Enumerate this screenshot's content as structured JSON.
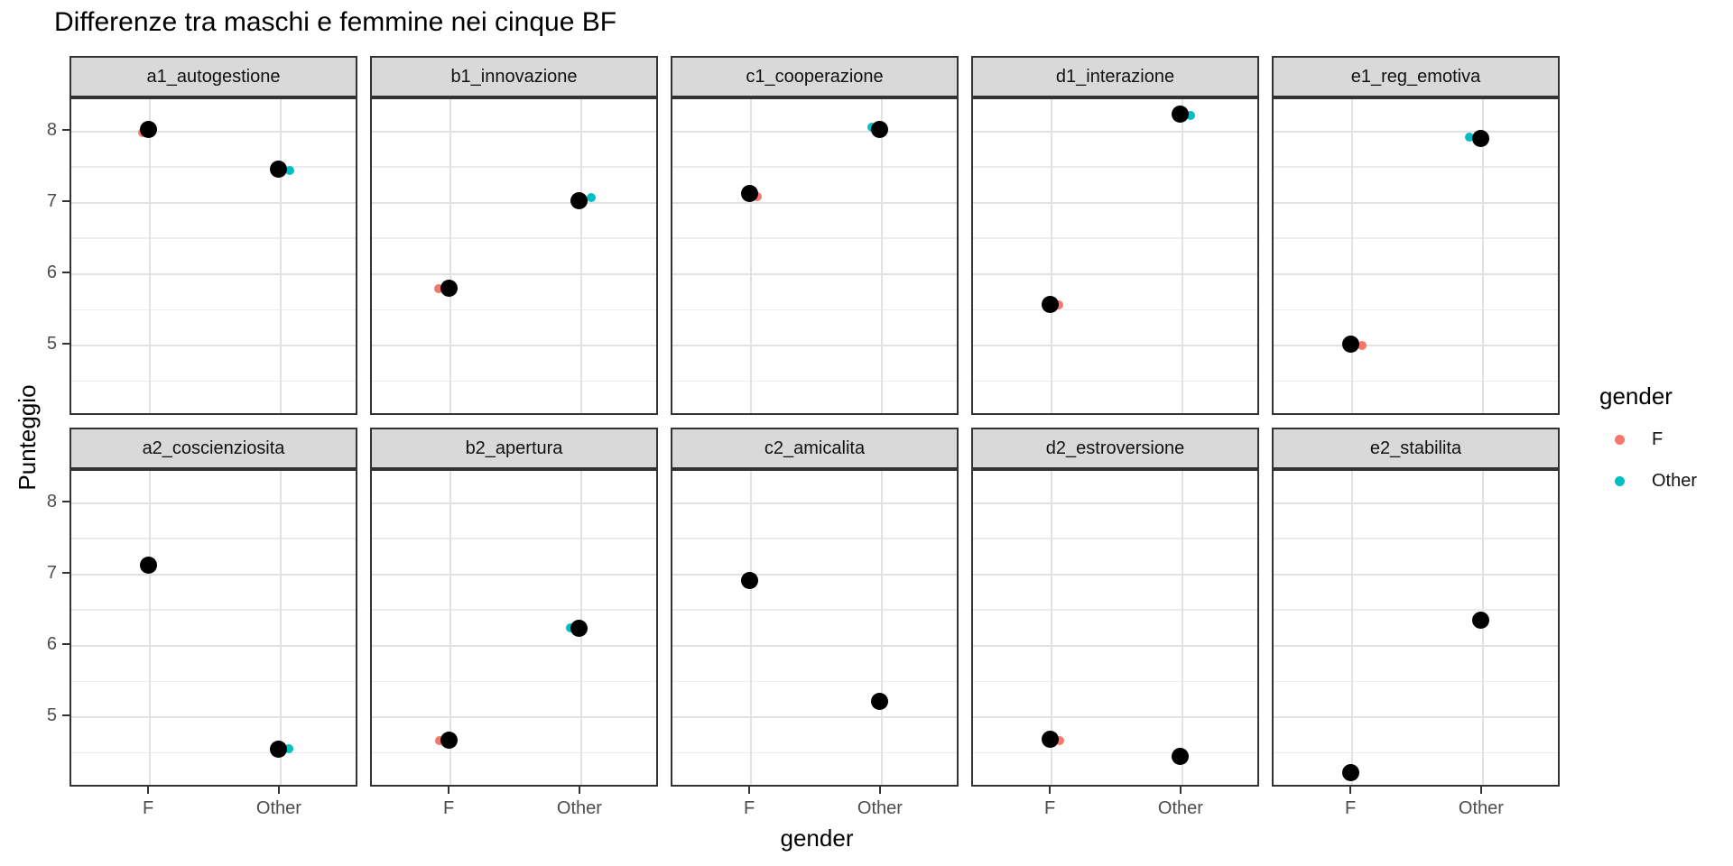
{
  "header": {
    "title": "Differenze tra maschi e femmine nei cinque BF"
  },
  "chart_data": {
    "type": "scatter",
    "title": "Differenze tra maschi e femmine nei cinque BF",
    "xlabel": "gender",
    "ylabel": "Punteggio",
    "x_categories": [
      "F",
      "Other"
    ],
    "y_major_ticks": [
      8,
      7,
      6,
      5
    ],
    "y_minor_ticks": [
      7.5,
      6.5,
      5.5,
      4.5
    ],
    "ylim": [
      4.0,
      8.45
    ],
    "grid": "major-and-minor",
    "facet_grid": {
      "rows": 2,
      "cols": 5
    },
    "legend": {
      "title": "gender",
      "position": "right",
      "entries": [
        {
          "label": "F",
          "color": "#F8766D"
        },
        {
          "label": "Other",
          "color": "#00BFC4"
        }
      ]
    },
    "series_colors": {
      "black": "#000000",
      "F": "#F8766D",
      "Other": "#00BFC4"
    },
    "point_sizes": {
      "black": 19,
      "colored": 10
    },
    "facets": [
      {
        "label": "a1_autogestione",
        "points": [
          {
            "x": "F",
            "series": "F",
            "y": 7.96,
            "dx": -6
          },
          {
            "x": "F",
            "series": "black",
            "y": 8.0
          },
          {
            "x": "Other",
            "series": "Other",
            "y": 7.43,
            "dx": 12
          },
          {
            "x": "Other",
            "series": "black",
            "y": 7.45
          }
        ]
      },
      {
        "label": "b1_innovazione",
        "points": [
          {
            "x": "F",
            "series": "F",
            "y": 5.77,
            "dx": -11
          },
          {
            "x": "F",
            "series": "black",
            "y": 5.77
          },
          {
            "x": "Other",
            "series": "Other",
            "y": 7.05,
            "dx": 13
          },
          {
            "x": "Other",
            "series": "black",
            "y": 7.0
          }
        ]
      },
      {
        "label": "c1_cooperazione",
        "points": [
          {
            "x": "F",
            "series": "F",
            "y": 7.06,
            "dx": 9
          },
          {
            "x": "F",
            "series": "black",
            "y": 7.1
          },
          {
            "x": "Other",
            "series": "Other",
            "y": 8.03,
            "dx": -9
          },
          {
            "x": "Other",
            "series": "black",
            "y": 8.0
          }
        ]
      },
      {
        "label": "d1_interazione",
        "points": [
          {
            "x": "F",
            "series": "F",
            "y": 5.54,
            "dx": 10
          },
          {
            "x": "F",
            "series": "black",
            "y": 5.55
          },
          {
            "x": "Other",
            "series": "Other",
            "y": 8.2,
            "dx": 11
          },
          {
            "x": "Other",
            "series": "black",
            "y": 8.22
          }
        ]
      },
      {
        "label": "e1_reg_emotiva",
        "points": [
          {
            "x": "F",
            "series": "F",
            "y": 4.97,
            "dx": 13
          },
          {
            "x": "F",
            "series": "black",
            "y": 4.99
          },
          {
            "x": "Other",
            "series": "Other",
            "y": 7.9,
            "dx": -13
          },
          {
            "x": "Other",
            "series": "black",
            "y": 7.88
          }
        ]
      },
      {
        "label": "a2_coscienziosita",
        "points": [
          {
            "x": "F",
            "series": "black",
            "y": 7.1
          },
          {
            "x": "Other",
            "series": "Other",
            "y": 4.53,
            "dx": 11
          },
          {
            "x": "Other",
            "series": "black",
            "y": 4.52
          }
        ]
      },
      {
        "label": "b2_apertura",
        "points": [
          {
            "x": "F",
            "series": "F",
            "y": 4.65,
            "dx": -10
          },
          {
            "x": "F",
            "series": "black",
            "y": 4.65
          },
          {
            "x": "Other",
            "series": "Other",
            "y": 6.23,
            "dx": -10
          },
          {
            "x": "Other",
            "series": "black",
            "y": 6.22
          }
        ]
      },
      {
        "label": "c2_amicalita",
        "points": [
          {
            "x": "F",
            "series": "black",
            "y": 6.89
          },
          {
            "x": "Other",
            "series": "black",
            "y": 5.2
          }
        ]
      },
      {
        "label": "d2_estroversione",
        "points": [
          {
            "x": "F",
            "series": "F",
            "y": 4.64,
            "dx": 11
          },
          {
            "x": "F",
            "series": "black",
            "y": 4.66
          },
          {
            "x": "Other",
            "series": "black",
            "y": 4.42
          }
        ]
      },
      {
        "label": "e2_stabilita",
        "points": [
          {
            "x": "F",
            "series": "black",
            "y": 4.2
          },
          {
            "x": "Other",
            "series": "black",
            "y": 6.33
          }
        ]
      }
    ]
  }
}
